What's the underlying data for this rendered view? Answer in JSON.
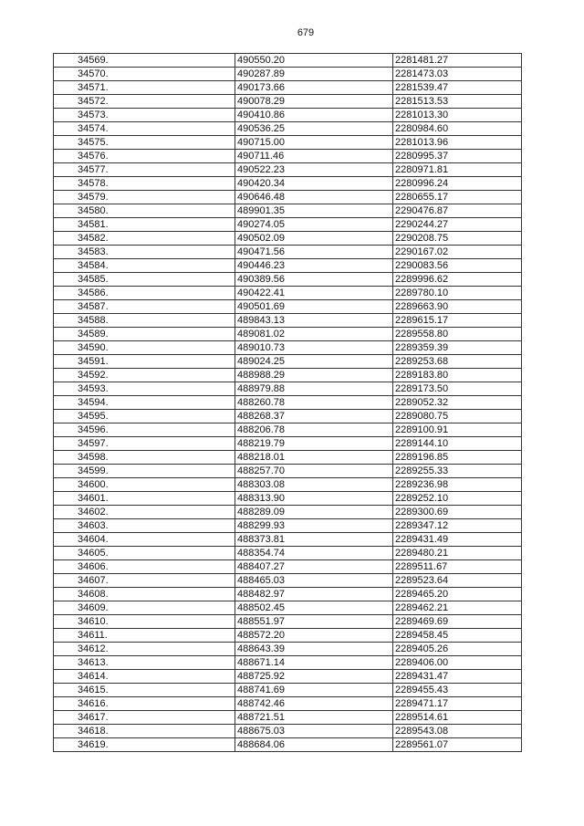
{
  "page_number": "679",
  "rows": [
    [
      "34569.",
      "490550.20",
      "2281481.27"
    ],
    [
      "34570.",
      "490287.89",
      "2281473.03"
    ],
    [
      "34571.",
      "490173.66",
      "2281539.47"
    ],
    [
      "34572.",
      "490078.29",
      "2281513.53"
    ],
    [
      "34573.",
      "490410.86",
      "2281013.30"
    ],
    [
      "34574.",
      "490536.25",
      "2280984.60"
    ],
    [
      "34575.",
      "490715.00",
      "2281013.96"
    ],
    [
      "34576.",
      "490711.46",
      "2280995.37"
    ],
    [
      "34577.",
      "490522.23",
      "2280971.81"
    ],
    [
      "34578.",
      "490420.34",
      "2280996.24"
    ],
    [
      "34579.",
      "490646.48",
      "2280655.17"
    ],
    [
      "34580.",
      "489901.35",
      "2290476.87"
    ],
    [
      "34581.",
      "490274.05",
      "2290244.27"
    ],
    [
      "34582.",
      "490502.09",
      "2290208.75"
    ],
    [
      "34583.",
      "490471.56",
      "2290167.02"
    ],
    [
      "34584.",
      "490446.23",
      "2290083.56"
    ],
    [
      "34585.",
      "490389.56",
      "2289996.62"
    ],
    [
      "34586.",
      "490422.41",
      "2289780.10"
    ],
    [
      "34587.",
      "490501.69",
      "2289663.90"
    ],
    [
      "34588.",
      "489843.13",
      "2289615.17"
    ],
    [
      "34589.",
      "489081.02",
      "2289558.80"
    ],
    [
      "34590.",
      "489010.73",
      "2289359.39"
    ],
    [
      "34591.",
      "489024.25",
      "2289253.68"
    ],
    [
      "34592.",
      "488988.29",
      "2289183.80"
    ],
    [
      "34593.",
      "488979.88",
      "2289173.50"
    ],
    [
      "34594.",
      "488260.78",
      "2289052.32"
    ],
    [
      "34595.",
      "488268.37",
      "2289080.75"
    ],
    [
      "34596.",
      "488206.78",
      "2289100.91"
    ],
    [
      "34597.",
      "488219.79",
      "2289144.10"
    ],
    [
      "34598.",
      "488218.01",
      "2289196.85"
    ],
    [
      "34599.",
      "488257.70",
      "2289255.33"
    ],
    [
      "34600.",
      "488303.08",
      "2289236.98"
    ],
    [
      "34601.",
      "488313.90",
      "2289252.10"
    ],
    [
      "34602.",
      "488289.09",
      "2289300.69"
    ],
    [
      "34603.",
      "488299.93",
      "2289347.12"
    ],
    [
      "34604.",
      "488373.81",
      "2289431.49"
    ],
    [
      "34605.",
      "488354.74",
      "2289480.21"
    ],
    [
      "34606.",
      "488407.27",
      "2289511.67"
    ],
    [
      "34607.",
      "488465.03",
      "2289523.64"
    ],
    [
      "34608.",
      "488482.97",
      "2289465.20"
    ],
    [
      "34609.",
      "488502.45",
      "2289462.21"
    ],
    [
      "34610.",
      "488551.97",
      "2289469.69"
    ],
    [
      "34611.",
      "488572.20",
      "2289458.45"
    ],
    [
      "34612.",
      "488643.39",
      "2289405.26"
    ],
    [
      "34613.",
      "488671.14",
      "2289406.00"
    ],
    [
      "34614.",
      "488725.92",
      "2289431.47"
    ],
    [
      "34615.",
      "488741.69",
      "2289455.43"
    ],
    [
      "34616.",
      "488742.46",
      "2289471.17"
    ],
    [
      "34617.",
      "488721.51",
      "2289514.61"
    ],
    [
      "34618.",
      "488675.03",
      "2289543.08"
    ],
    [
      "34619.",
      "488684.06",
      "2289561.07"
    ]
  ]
}
